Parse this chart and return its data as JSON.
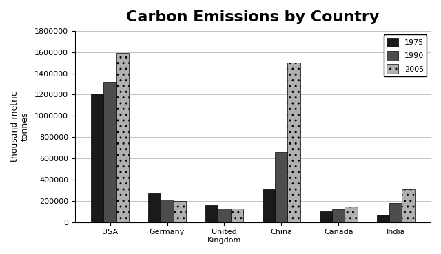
{
  "title": "Carbon Emissions by Country",
  "ylabel": "thousand metric\ntonnes",
  "categories": [
    "USA",
    "Germany",
    "United\nKingdom",
    "China",
    "Canada",
    "India"
  ],
  "years": [
    "1975",
    "1990",
    "2005"
  ],
  "values": {
    "1975": [
      1210000,
      270000,
      160000,
      310000,
      100000,
      70000
    ],
    "1990": [
      1320000,
      210000,
      130000,
      660000,
      120000,
      180000
    ],
    "2005": [
      1590000,
      200000,
      130000,
      1500000,
      150000,
      310000
    ]
  },
  "bar_colors": [
    "#1a1a1a",
    "#4d4d4d",
    "#b0b0b0"
  ],
  "bar_hatches": [
    null,
    null,
    ".."
  ],
  "ylim": [
    0,
    1800000
  ],
  "yticks": [
    0,
    200000,
    400000,
    600000,
    800000,
    1000000,
    1200000,
    1400000,
    1600000,
    1800000
  ],
  "background_color": "#ffffff",
  "legend_labels": [
    "1975",
    "1990",
    "2005"
  ],
  "title_fontsize": 16,
  "label_fontsize": 9,
  "tick_fontsize": 8
}
